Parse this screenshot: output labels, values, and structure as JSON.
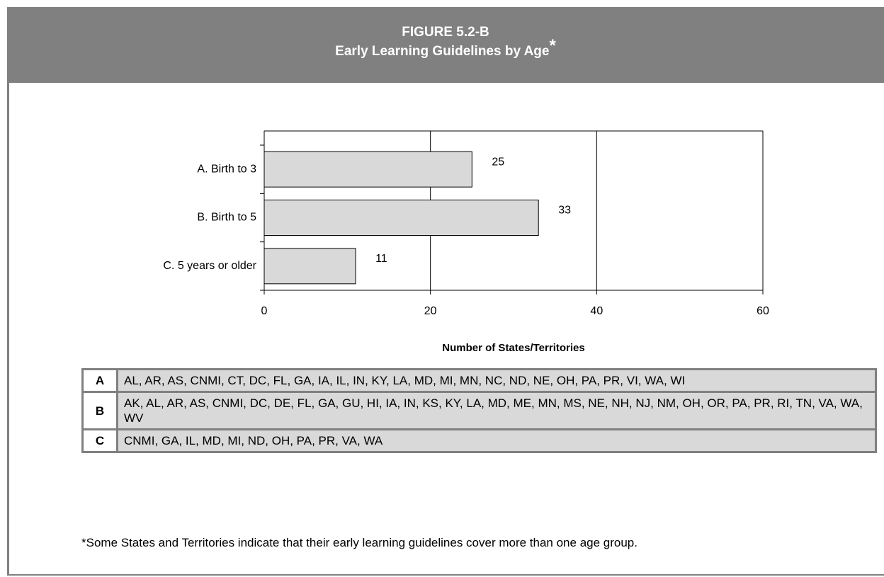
{
  "header": {
    "figure_label": "FIGURE 5.2-B",
    "title": "Early Learning Guidelines by Age",
    "title_marker": "*"
  },
  "chart_data": {
    "type": "hbar",
    "categories": [
      "A. Birth to 3",
      "B. Birth to 5",
      "C. 5 years or older"
    ],
    "values": [
      25,
      33,
      11
    ],
    "color": "#d9d9d9",
    "xlim": [
      0,
      60
    ],
    "xticks": [
      0,
      20,
      40,
      60
    ],
    "grid": true,
    "x_label": "Number of States/Territories"
  },
  "table": {
    "rows": [
      [
        "A",
        "AL, AR, AS, CNMI, CT, DC, FL, GA, IA, IL, IN, KY, LA, MD, MI, MN, NC, ND, NE, OH, PA, PR, VI, WA, WI"
      ],
      [
        "B",
        "AK, AL, AR, AS, CNMI, DC, DE, FL, GA, GU, HI, IA, IN, KS, KY, LA, MD, ME, MN, MS, NE, NH, NJ, NM, OH, OR, PA, PR, RI, TN, VA, WA, WV"
      ],
      [
        "C",
        "CNMI, GA, IL, MD, MI, ND, OH, PA, PR, VA, WA"
      ]
    ]
  },
  "footnote": "*Some States and Territories indicate that their early learning guidelines cover more than one age group."
}
